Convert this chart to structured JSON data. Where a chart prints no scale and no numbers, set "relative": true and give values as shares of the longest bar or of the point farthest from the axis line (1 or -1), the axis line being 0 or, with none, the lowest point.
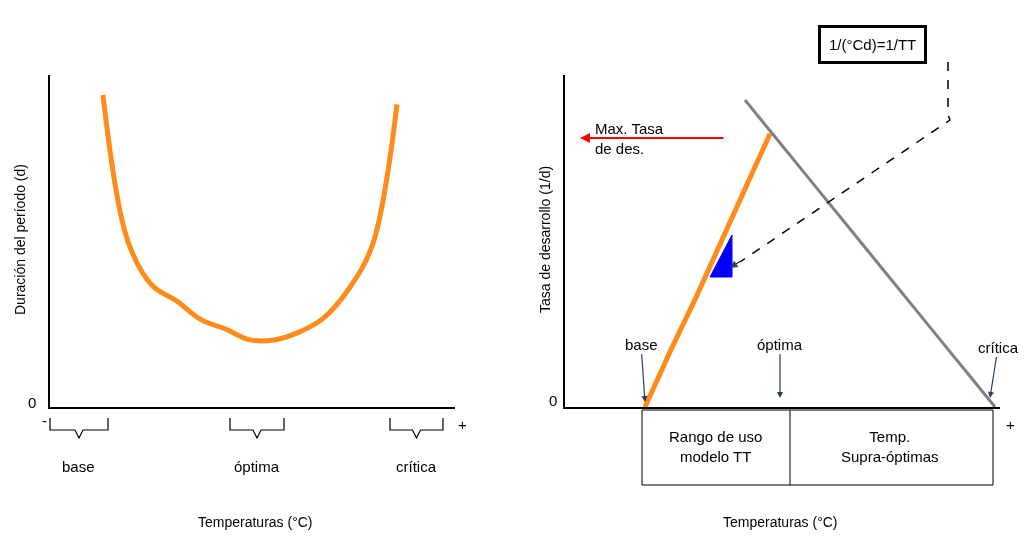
{
  "chart_data": [
    {
      "type": "line",
      "relative": true,
      "xlabel": "Temperaturas (°C)",
      "ylabel": "Duración del período (d)",
      "categories": [
        null,
        null,
        null,
        null,
        null,
        null,
        null,
        null,
        null,
        null,
        null,
        null,
        null,
        null,
        null,
        null,
        null
      ],
      "series": [
        {
          "color": "#ff8c1a",
          "values": [
            null,
            null,
            1.0,
            0.535,
            0.39,
            0.34,
            0.28,
            0.25,
            0.215,
            0.215,
            0.24,
            0.285,
            0.375,
            0.52,
            0.97,
            null,
            null
          ]
        }
      ],
      "annotations": [
        "0",
        "-",
        "+",
        "base",
        "óptima",
        "crítica"
      ],
      "marker": "none",
      "line_style": "solid"
    },
    {
      "type": "line",
      "relative": true,
      "xlabel": "Temperaturas (°C)",
      "ylabel": "Tasa de desarrollo (1/d)",
      "categories": [
        null,
        null,
        null,
        null,
        null,
        null,
        null,
        null,
        null,
        null,
        null,
        null,
        null,
        null,
        null,
        null,
        null,
        null
      ],
      "series": [
        {
          "color": "#ff8c1a",
          "values": [
            null,
            null,
            null,
            0,
            0.18,
            0.35,
            0.53,
            0.71,
            0.89,
            null,
            null,
            null,
            null,
            null,
            null,
            null,
            null,
            null
          ]
        },
        {
          "color": "#808080",
          "values": [
            null,
            null,
            null,
            null,
            null,
            null,
            null,
            1.0,
            0.9,
            0.8,
            0.7,
            0.6,
            0.5,
            0.4,
            0.3,
            0.2,
            0.1,
            0
          ]
        }
      ],
      "annotations": [
        "0",
        "+",
        "base",
        "óptima",
        "crítica",
        "Max. Tasa\nde des.",
        "1/(°Cd)=1/TT",
        "Rango de uso\nmodelo TT",
        "Temp.\nSupra-óptimas"
      ],
      "marker": "none",
      "line_style": "solid"
    }
  ]
}
